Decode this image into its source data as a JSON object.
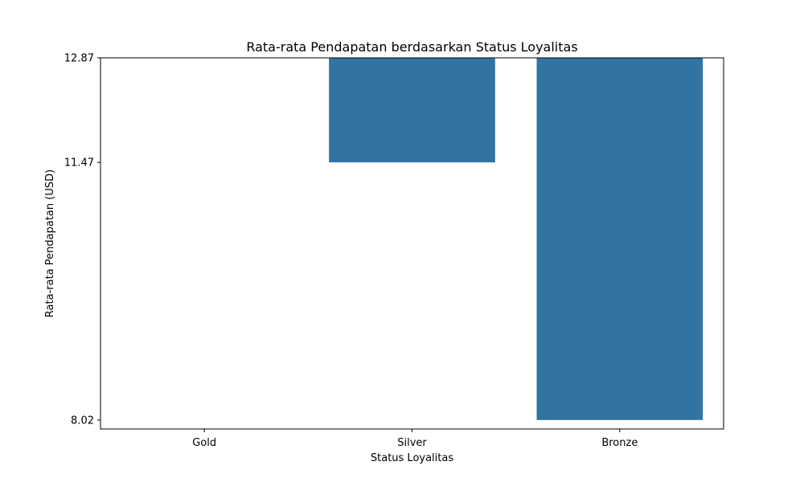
{
  "chart_data": {
    "type": "bar",
    "title": "Rata-rata Pendapatan berdasarkan Status Loyalitas",
    "xlabel": "Status Loyalitas",
    "ylabel": "Rata-rata Pendapatan (USD)",
    "categories": [
      "Gold",
      "Silver",
      "Bronze"
    ],
    "bars": [
      {
        "category": "Gold",
        "from": 12.87,
        "to": 12.87
      },
      {
        "category": "Silver",
        "from": 11.47,
        "to": 12.87
      },
      {
        "category": "Bronze",
        "from": 8.02,
        "to": 12.87
      }
    ],
    "yticks": [
      12.87,
      11.47,
      8.02
    ],
    "ytick_labels": [
      "12.87",
      "11.47",
      "8.02"
    ],
    "ylim": [
      7.9,
      12.87
    ],
    "y_inverted": true,
    "bar_color": "#3274a1",
    "grid": false,
    "legend": "none"
  }
}
